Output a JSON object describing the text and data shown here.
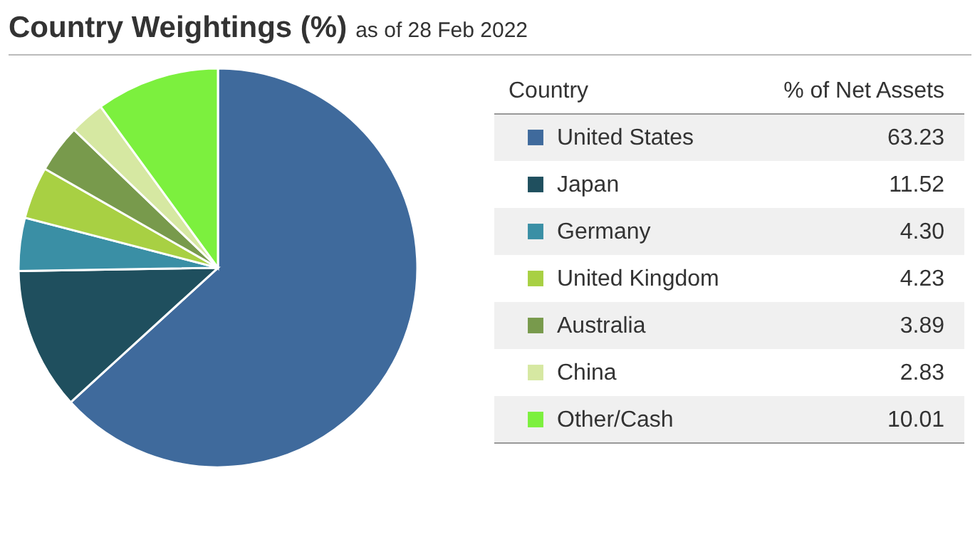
{
  "chart_data": {
    "type": "pie",
    "title": "Country Weightings (%)",
    "subtitle": "as of 28 Feb 2022",
    "legend_title": "Country",
    "annotations": [
      "% of Net Assets"
    ],
    "legend": "right",
    "value_labels": [
      "63.23",
      "11.52",
      "4.30",
      "4.23",
      "3.89",
      "2.83",
      "10.01"
    ],
    "categories": [
      "United States",
      "Japan",
      "Germany",
      "United Kingdom",
      "Australia",
      "China",
      "Other/Cash"
    ],
    "values": [
      63.23,
      11.52,
      4.3,
      4.23,
      3.89,
      2.83,
      10.01
    ],
    "colors": [
      "#3f6a9c",
      "#1f4f5e",
      "#3a8fa5",
      "#a8d043",
      "#789a4c",
      "#d6e8a2",
      "#7cf03e"
    ]
  }
}
